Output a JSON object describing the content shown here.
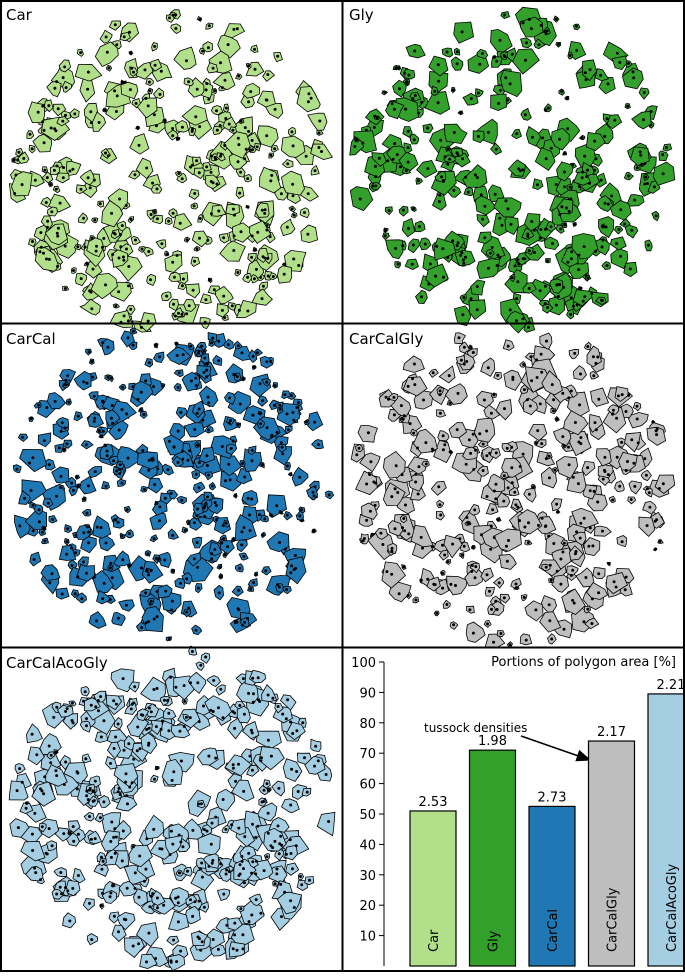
{
  "panels": [
    {
      "id": "car",
      "label": "Car",
      "color": "#b2df8a",
      "seed": 11,
      "n": 330,
      "fill_frac": 0.5
    },
    {
      "id": "gly",
      "label": "Gly",
      "color": "#33a02c",
      "seed": 23,
      "n": 300,
      "fill_frac": 0.7
    },
    {
      "id": "carcal",
      "label": "CarCal",
      "color": "#1f78b4",
      "seed": 37,
      "n": 360,
      "fill_frac": 0.52
    },
    {
      "id": "carcalgly",
      "label": "CarCalGly",
      "color": "#bebebe",
      "seed": 41,
      "n": 320,
      "fill_frac": 0.72
    },
    {
      "id": "carcalacogly",
      "label": "CarCalAcoGly",
      "color": "#a6cee3",
      "seed": 53,
      "n": 360,
      "fill_frac": 0.88
    }
  ],
  "chart_data": {
    "type": "bar",
    "title": "Portions of polygon area [%]",
    "categories": [
      "Car",
      "Gly",
      "CarCal",
      "CarCalGly",
      "CarCalAcoGly"
    ],
    "values": [
      51,
      71,
      52.5,
      74,
      89.5
    ],
    "data_labels": [
      "2.53",
      "1.98",
      "2.73",
      "2.17",
      "2.21"
    ],
    "colors": [
      "#b2df8a",
      "#33a02c",
      "#1f78b4",
      "#bebebe",
      "#a6cee3"
    ],
    "yticks": [
      10,
      20,
      30,
      40,
      50,
      60,
      70,
      80,
      90,
      100
    ],
    "ylim": [
      0,
      100
    ],
    "annotation": "tussock densities"
  }
}
